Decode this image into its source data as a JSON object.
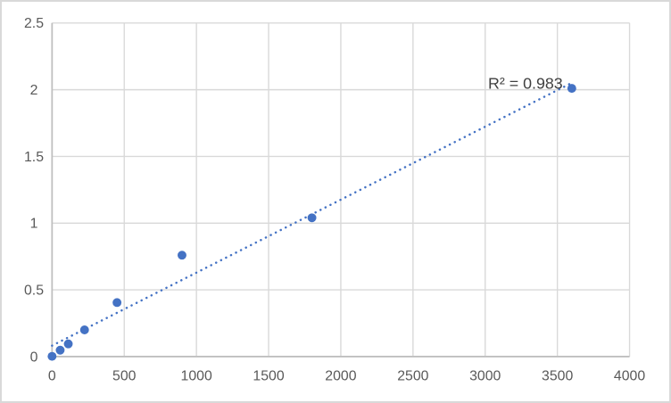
{
  "chart_data": {
    "type": "scatter",
    "title": "",
    "xlabel": "",
    "ylabel": "",
    "xlim": [
      0,
      4000
    ],
    "ylim": [
      0,
      2.5
    ],
    "grid": true,
    "legend": "none",
    "points": [
      [
        0,
        0.002
      ],
      [
        56.25,
        0.048
      ],
      [
        112.5,
        0.095
      ],
      [
        225,
        0.2
      ],
      [
        450,
        0.405
      ],
      [
        900,
        0.76
      ],
      [
        1800,
        1.04
      ],
      [
        3600,
        2.01
      ]
    ],
    "trendline": {
      "style": "dotted",
      "x1": 0,
      "y1": 0.082,
      "x2": 3600,
      "y2": 2.051
    },
    "r_squared_label": "R² = 0.983",
    "x_tick_values": [
      0,
      500,
      1000,
      1500,
      2000,
      2500,
      3000,
      3500,
      4000
    ],
    "x_tick_labels": [
      "0",
      "500",
      "1000",
      "1500",
      "2000",
      "2500",
      "3000",
      "3500",
      "4000"
    ],
    "y_tick_values": [
      0,
      0.5,
      1,
      1.5,
      2,
      2.5
    ],
    "y_tick_labels": [
      "0",
      "0.5",
      "1",
      "1.5",
      "2",
      "2.5"
    ],
    "colors": {
      "marker": "#4472C4",
      "trendline": "#4472C4",
      "gridline": "#D9D9D9",
      "axis_line": "#BFBFBF",
      "tick_label": "#595959",
      "r2_label": "#404040",
      "background": "#FFFFFF",
      "frame_border": "#D9D9D9"
    }
  }
}
